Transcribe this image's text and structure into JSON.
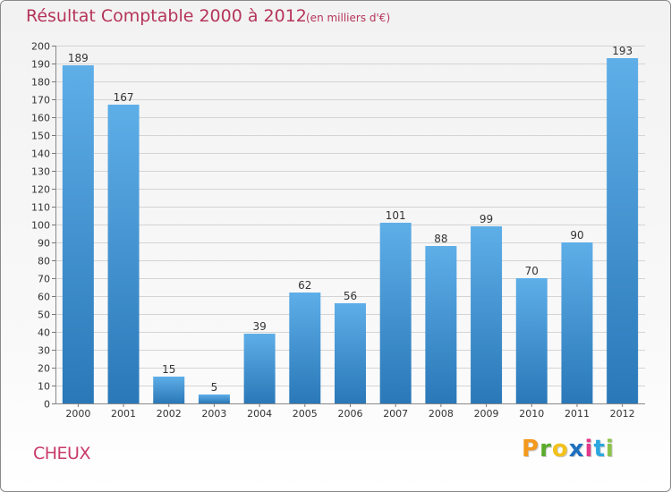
{
  "header": {
    "title": "Résultat Comptable 2000 à 2012",
    "subtitle": "(en milliers d'€)"
  },
  "footer": {
    "commune": "CHEUX",
    "logo": [
      "P",
      "r",
      "o",
      "x",
      "i",
      "t",
      "i"
    ]
  },
  "colors": {
    "title": "#b5345a",
    "bar_top": "#5eaee8",
    "bar_bottom": "#2a78b8",
    "logo": [
      "#f39a1e",
      "#5aab2c",
      "#f2c21a",
      "#1f6fbf",
      "#e23a8a",
      "#2aa7df",
      "#8bc34a"
    ]
  },
  "chart_data": {
    "type": "bar",
    "title": "Résultat Comptable 2000 à 2012",
    "ylabel": "(en milliers d'€)",
    "xlabel": "",
    "categories": [
      "2000",
      "2001",
      "2002",
      "2003",
      "2004",
      "2005",
      "2006",
      "2007",
      "2008",
      "2009",
      "2010",
      "2011",
      "2012"
    ],
    "values": [
      189,
      167,
      15,
      5,
      39,
      62,
      56,
      101,
      88,
      99,
      70,
      90,
      193
    ],
    "ylim": [
      0,
      200
    ],
    "ytick_step": 10,
    "grid": true
  }
}
